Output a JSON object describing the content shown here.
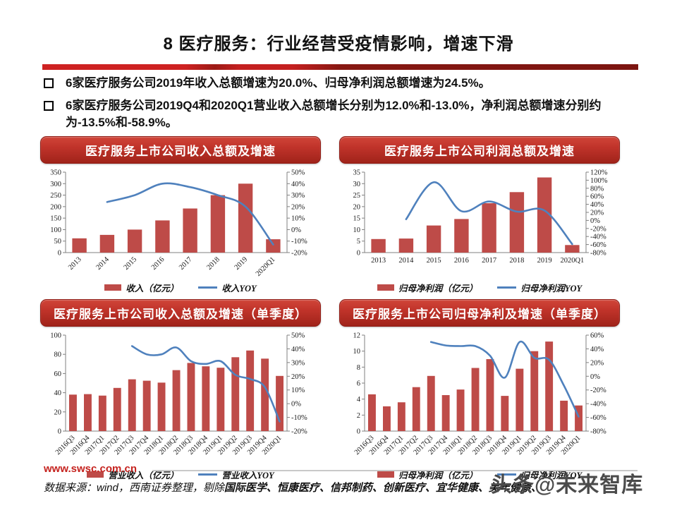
{
  "page_title": "8 医疗服务：行业经营受疫情影响，增速下滑",
  "bullets": [
    "6家医疗服务公司2019年收入总额增速为20.0%、归母净利润总额增速为24.5%。",
    "6家医疗服务公司2019Q4和2020Q1营业收入总额增长分别为12.0%和-13.0%，净利润总额增速分别约为-13.5%和-58.9%。"
  ],
  "colors": {
    "bar": "#BE4B48",
    "line": "#4F81BD",
    "banner_red": "#B7281E",
    "axis": "#808080"
  },
  "chart_data": [
    {
      "type": "bar+line",
      "title": "医疗服务上市公司收入总额及增速",
      "categories": [
        "2013",
        "2014",
        "2015",
        "2016",
        "2017",
        "2018",
        "2019",
        "2020Q1"
      ],
      "series": [
        {
          "name": "收入（亿元）",
          "kind": "bar",
          "axis": "left",
          "values": [
            62,
            77,
            100,
            140,
            192,
            250,
            300,
            58
          ]
        },
        {
          "name": "收入YOY",
          "kind": "line",
          "axis": "right",
          "values": [
            null,
            24,
            30,
            40,
            37,
            30,
            20,
            -13
          ]
        }
      ],
      "left_axis": {
        "min": 0,
        "max": 350,
        "step": 50
      },
      "right_axis": {
        "min": -20,
        "max": 50,
        "step": 10,
        "suffix": "%"
      },
      "rotated_labels": true,
      "grid": false,
      "legend_position": "bottom"
    },
    {
      "type": "bar+line",
      "title": "医疗服务上市公司利润总额及增速",
      "categories": [
        "2013",
        "2014",
        "2015",
        "2016",
        "2017",
        "2018",
        "2019",
        "2020Q1"
      ],
      "series": [
        {
          "name": "归母净利润（亿元）",
          "kind": "bar",
          "axis": "left",
          "values": [
            5.9,
            6.1,
            11.8,
            14.6,
            21.5,
            26.3,
            32.7,
            3.3
          ]
        },
        {
          "name": "归母净利润YOY",
          "kind": "line",
          "axis": "right",
          "values": [
            null,
            3,
            95,
            23,
            47,
            22,
            24.5,
            -58.9
          ]
        }
      ],
      "left_axis": {
        "min": 0,
        "max": 35,
        "step": 5
      },
      "right_axis": {
        "min": -80,
        "max": 120,
        "step": 20,
        "suffix": "%"
      },
      "rotated_labels": false,
      "grid": false,
      "legend_position": "bottom"
    },
    {
      "type": "bar+line",
      "title": "医疗服务上市公司收入总额及增速（单季度）",
      "categories": [
        "2016Q3",
        "2016Q4",
        "2017Q1",
        "2017Q2",
        "2017Q3",
        "2017Q4",
        "2018Q1",
        "2018Q2",
        "2018Q3",
        "2018Q4",
        "2019Q1",
        "2019Q2",
        "2019Q3",
        "2019Q4",
        "2020Q1"
      ],
      "series": [
        {
          "name": "营业收入（亿元）",
          "kind": "bar",
          "axis": "left",
          "values": [
            38,
            38.5,
            37,
            45,
            54,
            52.5,
            50.5,
            63.5,
            71,
            67.5,
            66,
            77,
            84,
            75.5,
            57.5
          ]
        },
        {
          "name": "营业收入YOY",
          "kind": "line",
          "axis": "right",
          "values": [
            null,
            null,
            null,
            null,
            42,
            36,
            36,
            41,
            31,
            29,
            31,
            21,
            18,
            12,
            -13
          ]
        }
      ],
      "left_axis": {
        "min": 0,
        "max": 100,
        "step": 20
      },
      "right_axis": {
        "min": -20,
        "max": 50,
        "step": 10,
        "suffix": "%"
      },
      "rotated_labels": true,
      "grid": false,
      "legend_position": "bottom"
    },
    {
      "type": "bar+line",
      "title": "医疗服务上市公司归母净利及增速（单季度）",
      "categories": [
        "2016Q3",
        "2016Q4",
        "2017Q1",
        "2017Q2",
        "2017Q3",
        "2017Q4",
        "2018Q1",
        "2018Q2",
        "2018Q3",
        "2018Q4",
        "2019Q1",
        "2019Q2",
        "2019Q3",
        "2019Q4",
        "2020Q1"
      ],
      "series": [
        {
          "name": "归母净利润（亿元）",
          "kind": "bar",
          "axis": "left",
          "values": [
            4.6,
            3.1,
            3.6,
            5.5,
            6.9,
            4.5,
            5.2,
            7.9,
            9.0,
            4.4,
            7.8,
            10.0,
            11.2,
            3.8,
            3.2
          ]
        },
        {
          "name": "归母净利润YOY",
          "kind": "line",
          "axis": "right",
          "values": [
            null,
            null,
            null,
            null,
            50,
            45,
            44,
            44,
            30,
            -2,
            50,
            27,
            24,
            -13.5,
            -58.9
          ]
        }
      ],
      "left_axis": {
        "min": 0,
        "max": 12,
        "step": 2
      },
      "right_axis": {
        "min": -80,
        "max": 60,
        "step": 20,
        "suffix": "%"
      },
      "rotated_labels": true,
      "grid": false,
      "legend_position": "bottom"
    }
  ],
  "footer": {
    "site": "www.swsc.com.cn",
    "source_prefix": "数据来源：wind，西南证券整理，剔除",
    "source_companies": "国际医学、恒康医疗、信邦制药、创新医疗、宜华健康、美年健康、",
    "watermark": "头条@未来智库"
  }
}
